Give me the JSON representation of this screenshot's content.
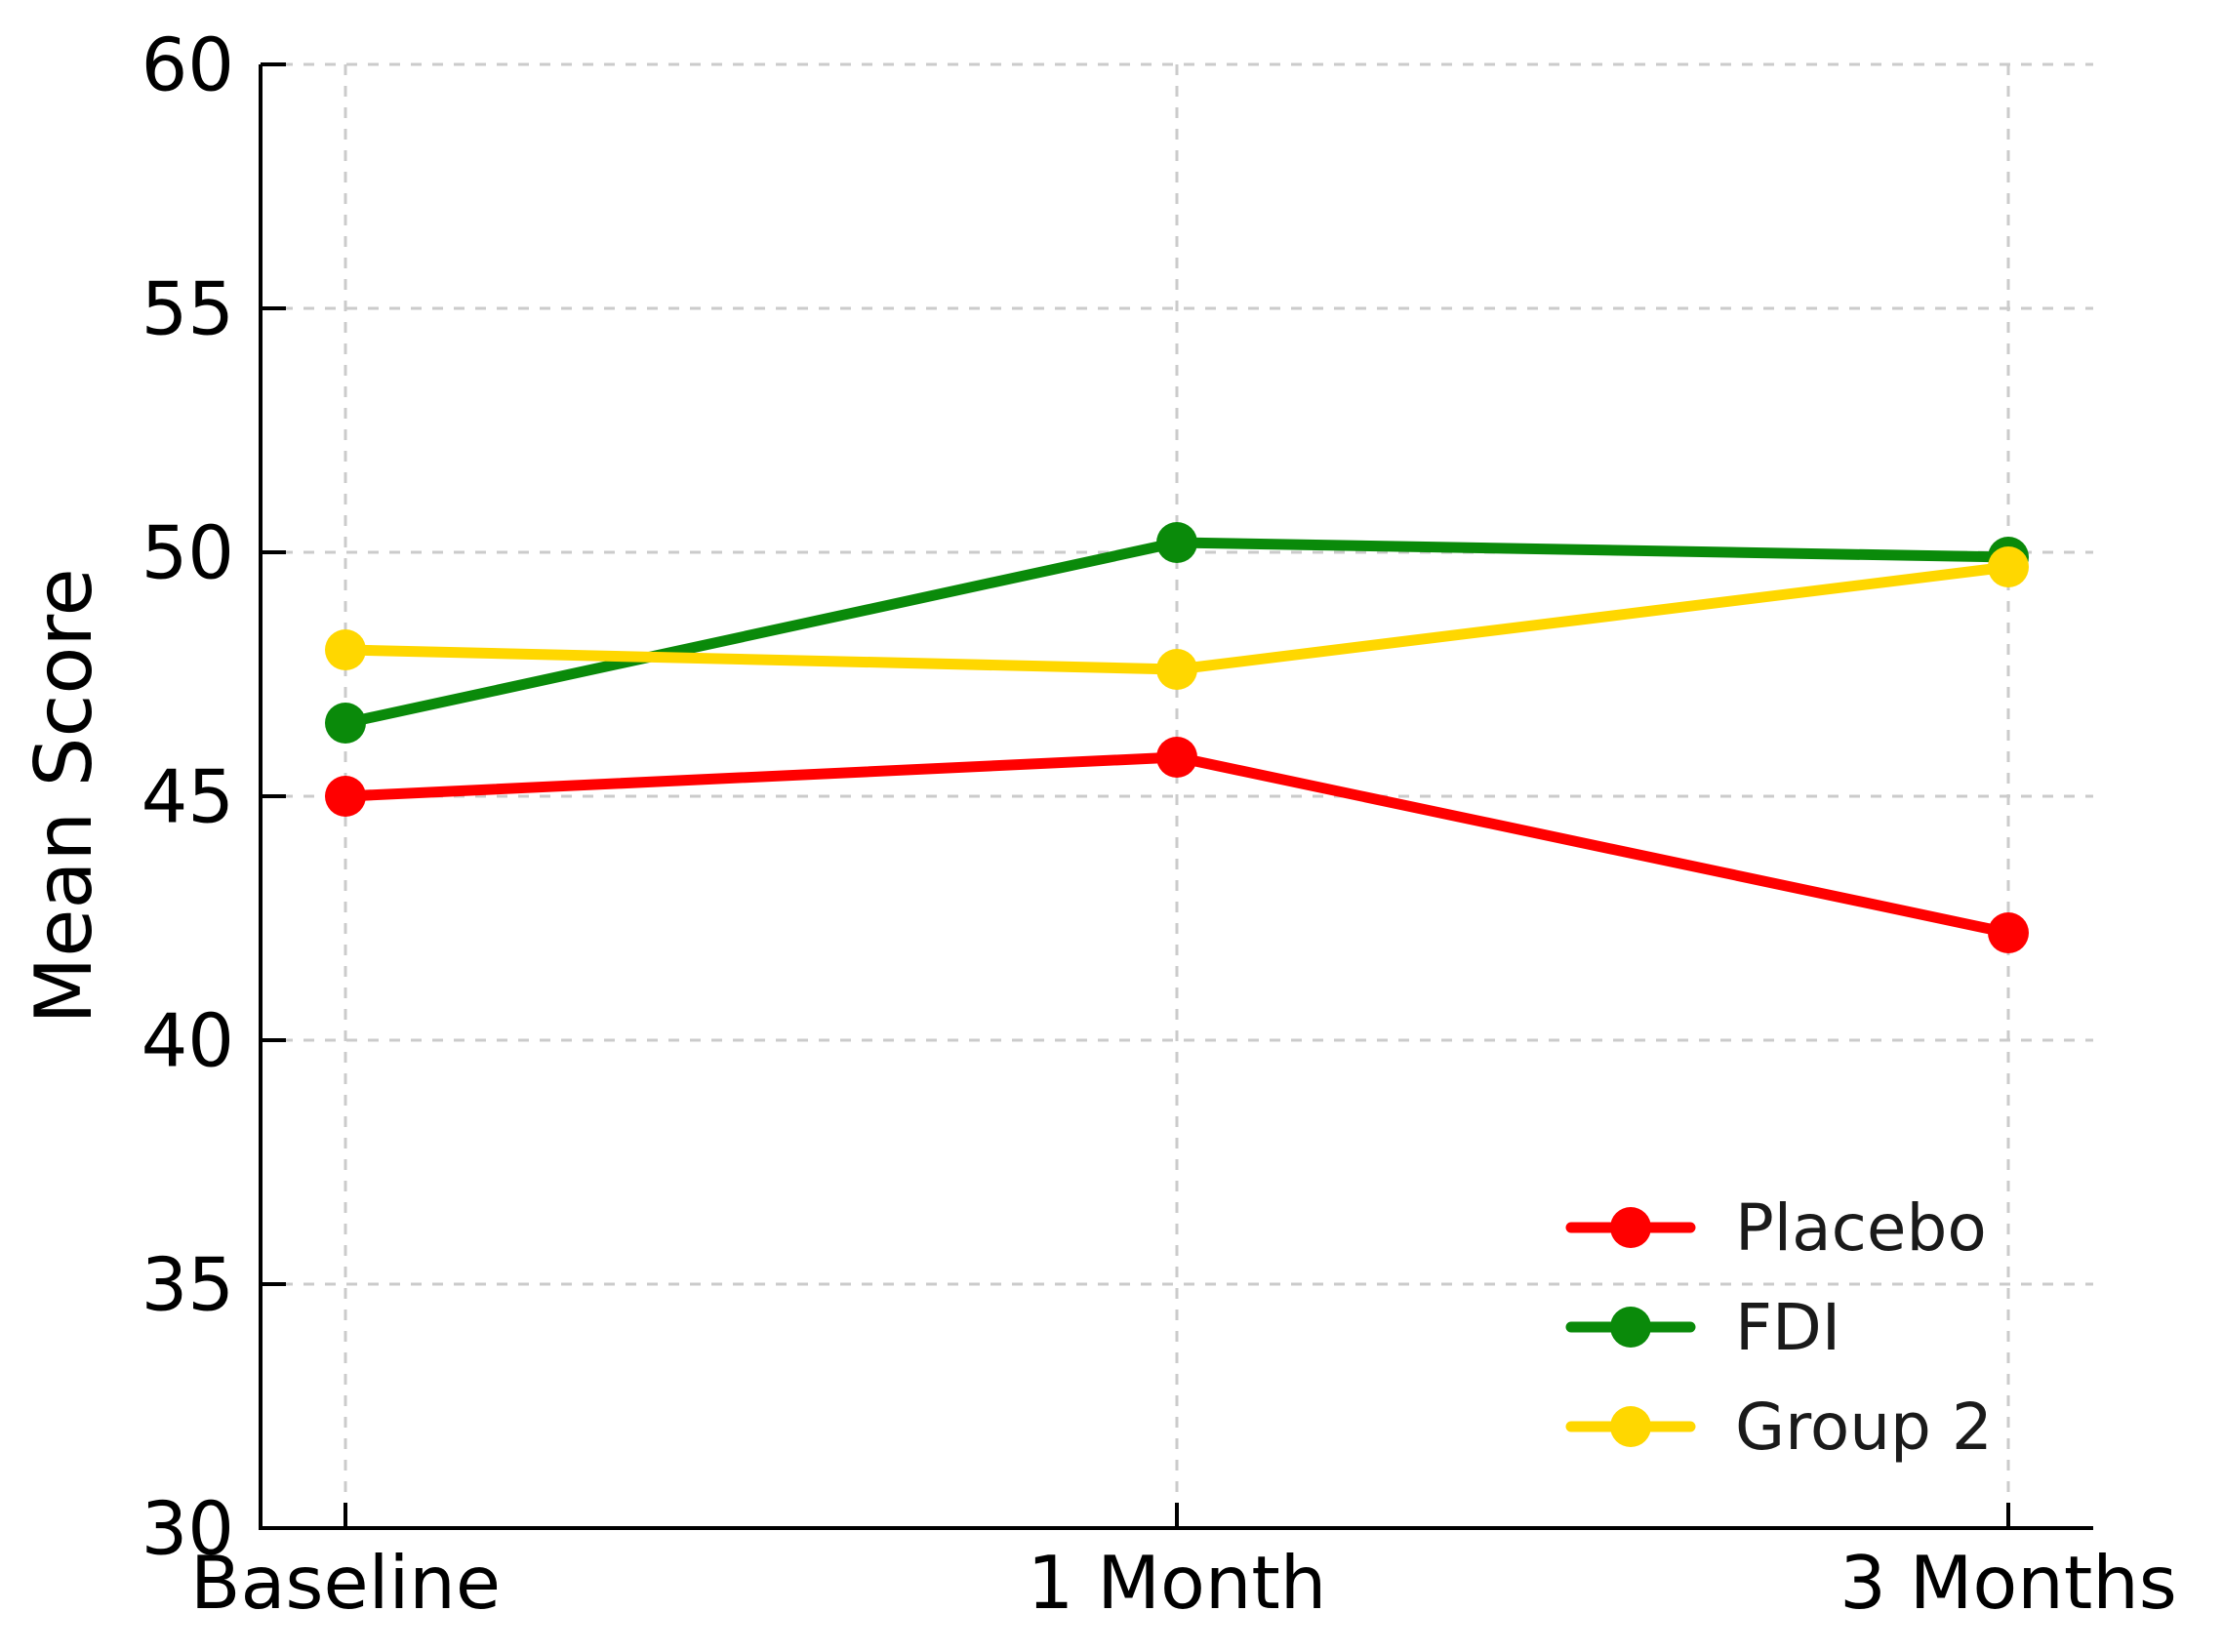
{
  "figure": {
    "background": "#ffffff",
    "text_color": "#000000",
    "spine_color": "#000000",
    "grid_color": "#cbcbcb"
  },
  "chart_data": {
    "type": "line",
    "title": "",
    "xlabel": "",
    "ylabel": "Mean Score",
    "categories": [
      "Baseline",
      "1 Month",
      "3 Months"
    ],
    "series": [
      {
        "name": "Placebo",
        "color": "#ff0000",
        "values": [
          45.0,
          45.8,
          42.2
        ]
      },
      {
        "name": "FDI",
        "color": "#0a8a0a",
        "values": [
          46.5,
          50.2,
          49.9
        ]
      },
      {
        "name": "Group 2",
        "color": "#ffd700",
        "values": [
          48.0,
          47.6,
          49.7
        ]
      }
    ],
    "ylim": [
      30,
      60
    ],
    "yticks": [
      30,
      35,
      40,
      45,
      50,
      55,
      60
    ],
    "grid": true,
    "grid_style": "dashed",
    "legend_position": "lower right",
    "legend_frame": false
  }
}
